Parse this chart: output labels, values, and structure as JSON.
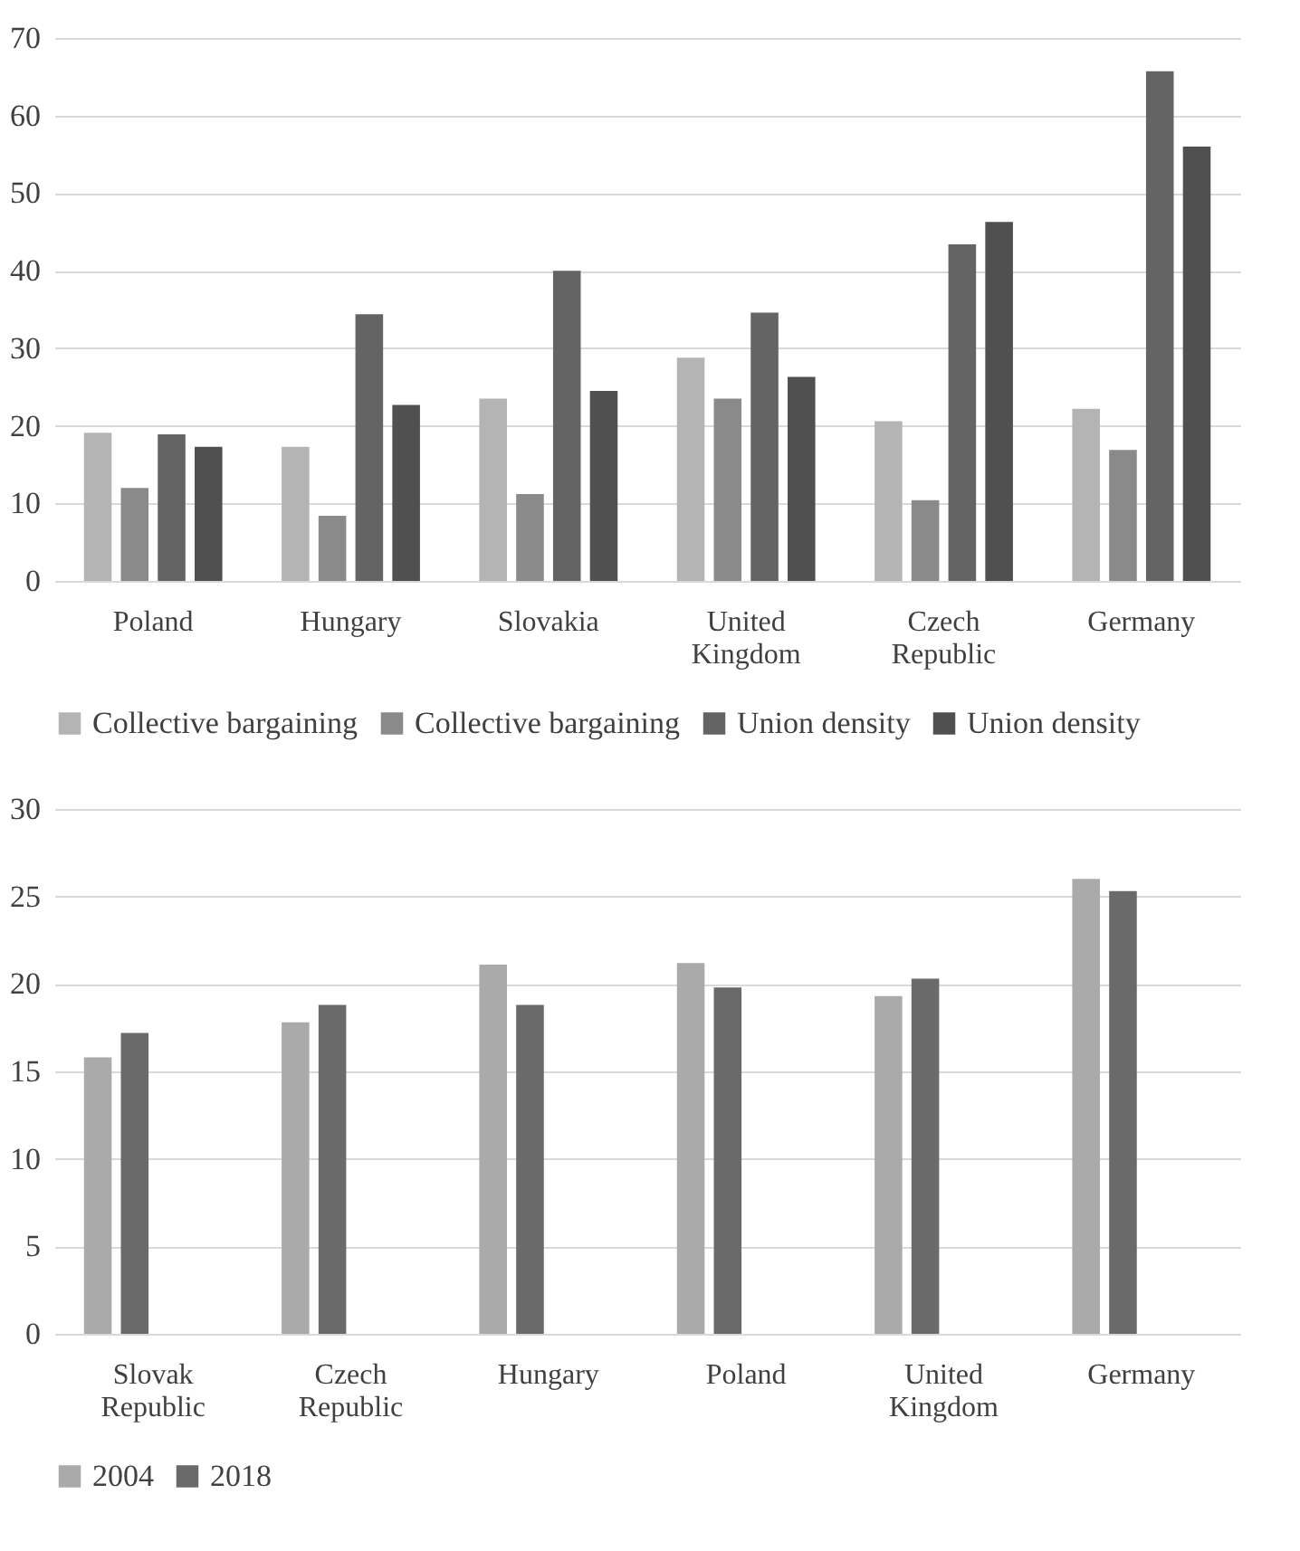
{
  "chart_data": [
    {
      "type": "bar",
      "categories": [
        "Poland",
        "Hungary",
        "Slovakia",
        "United Kingdom",
        "Czech Republic",
        "Germany"
      ],
      "series": [
        {
          "name": "Collective bargaining",
          "color": "#b4b4b4",
          "values": [
            19.1,
            17.3,
            23.5,
            28.8,
            20.6,
            22.2
          ]
        },
        {
          "name": "Collective bargaining",
          "color": "#8a8a8a",
          "values": [
            12.0,
            8.4,
            11.2,
            23.5,
            10.4,
            16.9
          ]
        },
        {
          "name": "Union density",
          "color": "#646464",
          "values": [
            18.9,
            34.4,
            40.0,
            34.6,
            43.4,
            65.7
          ]
        },
        {
          "name": "Union density",
          "color": "#505050",
          "values": [
            17.3,
            22.7,
            24.5,
            26.3,
            46.3,
            56.0
          ]
        }
      ],
      "ylim": [
        0,
        70
      ],
      "yticks": [
        0,
        10,
        20,
        30,
        40,
        50,
        60,
        70
      ],
      "grid": "y",
      "legend": "bottom"
    },
    {
      "type": "bar",
      "categories": [
        "Slovak Republic",
        "Czech Republic",
        "Hungary",
        "Poland",
        "United Kingdom",
        "Germany"
      ],
      "series": [
        {
          "name": "2004",
          "color": "#aaaaaa",
          "values": [
            15.8,
            17.8,
            21.1,
            21.2,
            19.3,
            26.0
          ]
        },
        {
          "name": "2018",
          "color": "#6a6a6a",
          "values": [
            17.2,
            18.8,
            18.8,
            19.8,
            20.3,
            25.3
          ]
        }
      ],
      "ylim": [
        0,
        30
      ],
      "yticks": [
        0,
        5,
        10,
        15,
        20,
        25,
        30
      ],
      "grid": "y",
      "legend": "bottom"
    }
  ]
}
